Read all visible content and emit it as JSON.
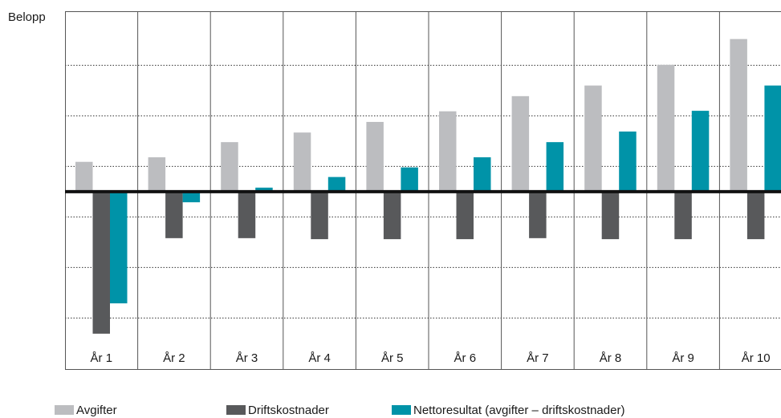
{
  "chart_data": {
    "type": "bar",
    "ylabel": "Belopp",
    "categories": [
      "År 1",
      "År 2",
      "År 3",
      "År 4",
      "År 5",
      "År 6",
      "År 7",
      "År 8",
      "År 9",
      "År 10"
    ],
    "series": [
      {
        "name": "Avgifter",
        "color": "#bcbdc0",
        "values": [
          0.59,
          0.68,
          0.98,
          1.17,
          1.38,
          1.59,
          1.89,
          2.1,
          2.51,
          3.02
        ]
      },
      {
        "name": "Driftskostnader",
        "color": "#58595b",
        "values": [
          -2.81,
          -0.92,
          -0.92,
          -0.94,
          -0.94,
          -0.94,
          -0.92,
          -0.94,
          -0.94,
          -0.94
        ]
      },
      {
        "name": "Nettoresultat (avgifter – driftskostnader)",
        "color": "#0093a8",
        "values": [
          -2.21,
          -0.21,
          0.08,
          0.29,
          0.48,
          0.68,
          0.98,
          1.19,
          1.6,
          2.1
        ]
      }
    ],
    "ylim": [
      -3.51,
      3.57
    ],
    "yticks": [
      -2.5,
      -1.5,
      -0.5,
      0.5,
      1.5,
      2.5
    ],
    "grid": true,
    "legend": "bottom"
  }
}
